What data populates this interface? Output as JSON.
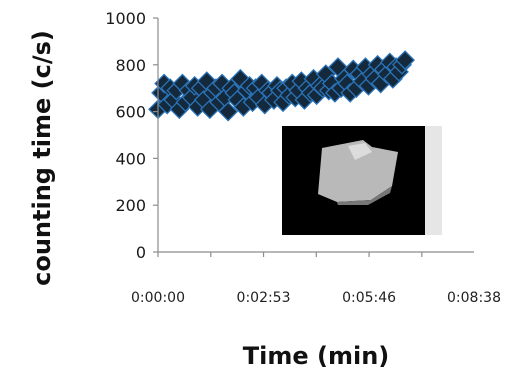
{
  "chart_data": {
    "type": "scatter",
    "xlabel": "Time (min)",
    "ylabel": "counting time (c/s)",
    "xlim_seconds": [
      0,
      518
    ],
    "ylim": [
      0,
      1000
    ],
    "yticks": [
      0,
      200,
      400,
      600,
      800,
      1000
    ],
    "xticks": [
      "0:00:00",
      "0:02:53",
      "0:05:46",
      "0:08:38"
    ],
    "xtick_seconds": [
      0,
      173,
      346,
      518
    ],
    "marker": {
      "shape": "diamond",
      "fill": "#142a3c",
      "edge": "#2a73b8"
    },
    "series": [
      {
        "x_seconds": [
          0,
          5,
          10,
          15,
          20,
          25,
          30,
          35,
          40,
          45,
          50,
          55,
          60,
          65,
          70,
          75,
          80,
          85,
          90,
          95,
          100,
          105,
          110,
          115,
          120,
          125,
          130,
          135,
          140,
          145,
          150,
          155,
          160,
          165,
          170,
          175,
          180,
          185,
          190,
          195,
          200,
          205,
          210,
          215,
          220,
          225,
          230,
          235,
          240,
          245,
          250,
          255,
          260,
          265,
          270,
          275,
          280,
          285,
          290,
          295,
          300,
          305,
          310,
          315,
          320,
          325,
          330,
          335,
          340,
          345,
          350,
          355,
          360,
          365,
          370,
          375,
          380,
          385,
          390,
          395,
          400,
          405
        ],
        "values": [
          610,
          680,
          720,
          630,
          700,
          650,
          690,
          610,
          720,
          640,
          690,
          660,
          710,
          620,
          700,
          650,
          730,
          610,
          680,
          700,
          640,
          720,
          660,
          600,
          700,
          680,
          650,
          740,
          620,
          690,
          710,
          640,
          700,
          660,
          720,
          630,
          690,
          680,
          650,
          710,
          690,
          640,
          700,
          670,
          720,
          660,
          690,
          730,
          650,
          700,
          680,
          740,
          670,
          710,
          700,
          760,
          690,
          720,
          680,
          790,
          700,
          740,
          720,
          680,
          780,
          700,
          760,
          730,
          790,
          710,
          760,
          740,
          800,
          720,
          780,
          760,
          810,
          740,
          790,
          770,
          800,
          820
        ]
      }
    ]
  },
  "inset": {
    "background": "#000000",
    "fragment_color": "#b9b9b9",
    "edge_color": "#e6e6e6"
  }
}
